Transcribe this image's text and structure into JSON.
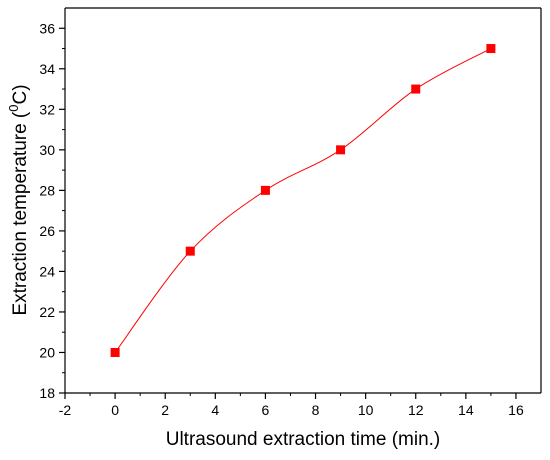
{
  "chart_data": {
    "type": "line",
    "xlabel": "Ultrasound extraction time (min.)",
    "ylabel": "Extraction temperature (",
    "ylabel_sup": "0",
    "ylabel_suffix": "C)",
    "xlim": [
      -2,
      17
    ],
    "ylim": [
      18,
      37
    ],
    "x_ticks": [
      -2,
      0,
      2,
      4,
      6,
      8,
      10,
      12,
      14,
      16
    ],
    "y_ticks": [
      18,
      20,
      22,
      24,
      26,
      28,
      30,
      32,
      34,
      36
    ],
    "grid": false,
    "series": [
      {
        "x": [
          0,
          3,
          6,
          9,
          12,
          15
        ],
        "y": [
          20,
          25,
          28,
          30,
          33,
          35
        ],
        "color": "#ff0000",
        "marker": "square",
        "smooth": true
      }
    ]
  }
}
